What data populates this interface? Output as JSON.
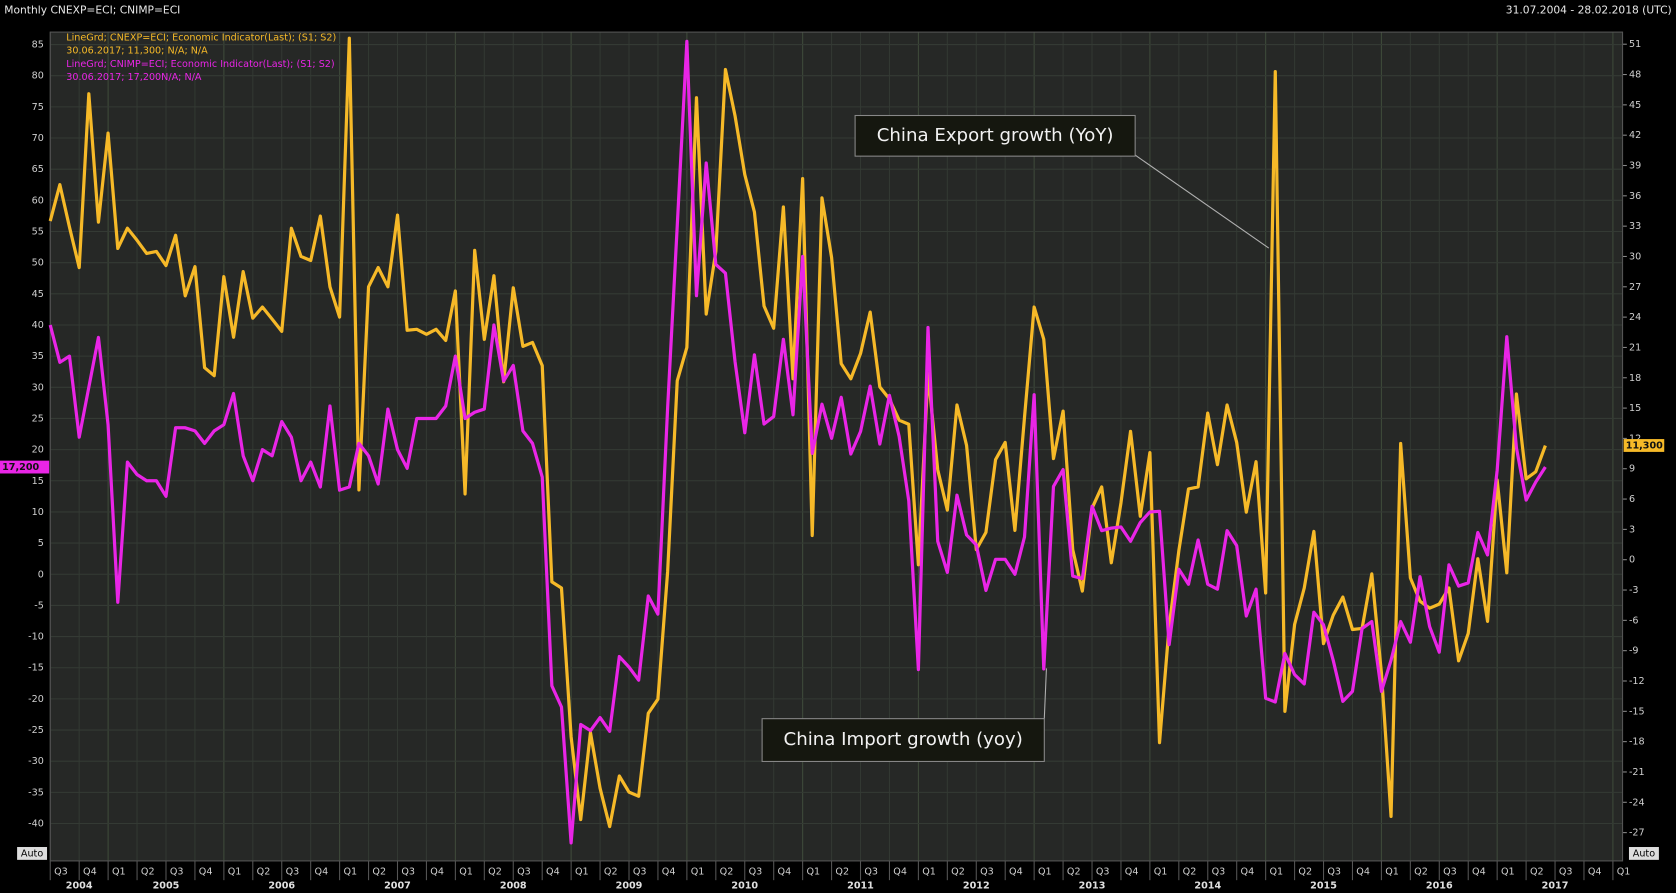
{
  "chart_data": {
    "type": "line",
    "title": "Monthly CNEXP=ECI; CNIMP=ECI",
    "date_range": "31.07.2004 - 28.02.2018 (UTC)",
    "annotations": [
      "China Export growth (YoY)",
      "China Import growth (yoy)"
    ],
    "scale_buttons": [
      "Auto",
      "Auto"
    ],
    "grid": true,
    "xlim": [
      "2004-07",
      "2018-02"
    ],
    "ylim": [
      -46,
      87
    ],
    "y2lim": [
      -29.8,
      52.2
    ],
    "yticks": [
      -40,
      -35,
      -30,
      -25,
      -20,
      -15,
      -10,
      -5,
      0,
      5,
      10,
      15,
      20,
      25,
      30,
      35,
      40,
      45,
      50,
      55,
      60,
      65,
      70,
      75,
      80,
      85
    ],
    "y2ticks": [
      -27,
      -24,
      -21,
      -18,
      -15,
      -12,
      -9,
      -6,
      -3,
      0,
      3,
      6,
      9,
      12,
      15,
      18,
      21,
      24,
      27,
      30,
      33,
      36,
      39,
      42,
      45,
      48,
      51
    ],
    "xticks": [
      {
        "value": "2004-07",
        "label": "Q3"
      },
      {
        "value": "2004-10",
        "label": "Q4"
      },
      {
        "value": "2005-01",
        "label": "Q1"
      },
      {
        "value": "2005-04",
        "label": "Q2"
      },
      {
        "value": "2005-07",
        "label": "Q3"
      },
      {
        "value": "2005-10",
        "label": "Q4"
      },
      {
        "value": "2006-01",
        "label": "Q1"
      },
      {
        "value": "2006-04",
        "label": "Q2"
      },
      {
        "value": "2006-07",
        "label": "Q3"
      },
      {
        "value": "2006-10",
        "label": "Q4"
      },
      {
        "value": "2007-01",
        "label": "Q1"
      },
      {
        "value": "2007-04",
        "label": "Q2"
      },
      {
        "value": "2007-07",
        "label": "Q3"
      },
      {
        "value": "2007-10",
        "label": "Q4"
      },
      {
        "value": "2008-01",
        "label": "Q1"
      },
      {
        "value": "2008-04",
        "label": "Q2"
      },
      {
        "value": "2008-07",
        "label": "Q3"
      },
      {
        "value": "2008-10",
        "label": "Q4"
      },
      {
        "value": "2009-01",
        "label": "Q1"
      },
      {
        "value": "2009-04",
        "label": "Q2"
      },
      {
        "value": "2009-07",
        "label": "Q3"
      },
      {
        "value": "2009-10",
        "label": "Q4"
      },
      {
        "value": "2010-01",
        "label": "Q1"
      },
      {
        "value": "2010-04",
        "label": "Q2"
      },
      {
        "value": "2010-07",
        "label": "Q3"
      },
      {
        "value": "2010-10",
        "label": "Q4"
      },
      {
        "value": "2011-01",
        "label": "Q1"
      },
      {
        "value": "2011-04",
        "label": "Q2"
      },
      {
        "value": "2011-07",
        "label": "Q3"
      },
      {
        "value": "2011-10",
        "label": "Q4"
      },
      {
        "value": "2012-01",
        "label": "Q1"
      },
      {
        "value": "2012-04",
        "label": "Q2"
      },
      {
        "value": "2012-07",
        "label": "Q3"
      },
      {
        "value": "2012-10",
        "label": "Q4"
      },
      {
        "value": "2013-01",
        "label": "Q1"
      },
      {
        "value": "2013-04",
        "label": "Q2"
      },
      {
        "value": "2013-07",
        "label": "Q3"
      },
      {
        "value": "2013-10",
        "label": "Q4"
      },
      {
        "value": "2014-01",
        "label": "Q1"
      },
      {
        "value": "2014-04",
        "label": "Q2"
      },
      {
        "value": "2014-07",
        "label": "Q3"
      },
      {
        "value": "2014-10",
        "label": "Q4"
      },
      {
        "value": "2015-01",
        "label": "Q1"
      },
      {
        "value": "2015-04",
        "label": "Q2"
      },
      {
        "value": "2015-07",
        "label": "Q3"
      },
      {
        "value": "2015-10",
        "label": "Q4"
      },
      {
        "value": "2016-01",
        "label": "Q1"
      },
      {
        "value": "2016-04",
        "label": "Q2"
      },
      {
        "value": "2016-07",
        "label": "Q3"
      },
      {
        "value": "2016-10",
        "label": "Q4"
      },
      {
        "value": "2017-01",
        "label": "Q1"
      },
      {
        "value": "2017-04",
        "label": "Q2"
      },
      {
        "value": "2017-07",
        "label": "Q3"
      },
      {
        "value": "2017-10",
        "label": "Q4"
      },
      {
        "value": "2018-01",
        "label": "Q1"
      }
    ],
    "years": [
      "2004",
      "2005",
      "2006",
      "2007",
      "2008",
      "2009",
      "2010",
      "2011",
      "2012",
      "2013",
      "2014",
      "2015",
      "2016",
      "2017"
    ],
    "x": [
      "2004-07",
      "2004-08",
      "2004-09",
      "2004-10",
      "2004-11",
      "2004-12",
      "2005-01",
      "2005-02",
      "2005-03",
      "2005-04",
      "2005-05",
      "2005-06",
      "2005-07",
      "2005-08",
      "2005-09",
      "2005-10",
      "2005-11",
      "2005-12",
      "2006-01",
      "2006-02",
      "2006-03",
      "2006-04",
      "2006-05",
      "2006-06",
      "2006-07",
      "2006-08",
      "2006-09",
      "2006-10",
      "2006-11",
      "2006-12",
      "2007-01",
      "2007-02",
      "2007-03",
      "2007-04",
      "2007-05",
      "2007-06",
      "2007-07",
      "2007-08",
      "2007-09",
      "2007-10",
      "2007-11",
      "2007-12",
      "2008-01",
      "2008-02",
      "2008-03",
      "2008-04",
      "2008-05",
      "2008-06",
      "2008-07",
      "2008-08",
      "2008-09",
      "2008-10",
      "2008-11",
      "2008-12",
      "2009-01",
      "2009-02",
      "2009-03",
      "2009-04",
      "2009-05",
      "2009-06",
      "2009-07",
      "2009-08",
      "2009-09",
      "2009-10",
      "2009-11",
      "2009-12",
      "2010-01",
      "2010-02",
      "2010-03",
      "2010-04",
      "2010-05",
      "2010-06",
      "2010-07",
      "2010-08",
      "2010-09",
      "2010-10",
      "2010-11",
      "2010-12",
      "2011-01",
      "2011-02",
      "2011-03",
      "2011-04",
      "2011-05",
      "2011-06",
      "2011-07",
      "2011-08",
      "2011-09",
      "2011-10",
      "2011-11",
      "2011-12",
      "2012-01",
      "2012-02",
      "2012-03",
      "2012-04",
      "2012-05",
      "2012-06",
      "2012-07",
      "2012-08",
      "2012-09",
      "2012-10",
      "2012-11",
      "2012-12",
      "2013-01",
      "2013-02",
      "2013-03",
      "2013-04",
      "2013-05",
      "2013-06",
      "2013-07",
      "2013-08",
      "2013-09",
      "2013-10",
      "2013-11",
      "2013-12",
      "2014-01",
      "2014-02",
      "2014-03",
      "2014-04",
      "2014-05",
      "2014-06",
      "2014-07",
      "2014-08",
      "2014-09",
      "2014-10",
      "2014-11",
      "2014-12",
      "2015-01",
      "2015-02",
      "2015-03",
      "2015-04",
      "2015-05",
      "2015-06",
      "2015-07",
      "2015-08",
      "2015-09",
      "2015-10",
      "2015-11",
      "2015-12",
      "2016-01",
      "2016-02",
      "2016-03",
      "2016-04",
      "2016-05",
      "2016-06",
      "2016-07",
      "2016-08",
      "2016-09",
      "2016-10",
      "2016-11",
      "2016-12",
      "2017-01",
      "2017-02",
      "2017-03",
      "2017-04",
      "2017-05",
      "2017-06"
    ],
    "series": [
      {
        "name": "LineGrd; CNEXP=ECI; Economic Indicator(Last); (S1; S2)",
        "detail": "30.06.2017; 11,300; N/A; N/A",
        "last_label": "11,300",
        "color": "#f6b928",
        "axis": "y2",
        "values": [
          33.5,
          37.1,
          32.9,
          28.9,
          46.1,
          33.4,
          42.2,
          30.8,
          32.8,
          31.6,
          30.3,
          30.5,
          29.1,
          32.1,
          26.1,
          29.0,
          19.0,
          18.2,
          28.0,
          22.0,
          28.5,
          23.9,
          25.0,
          23.8,
          22.6,
          32.8,
          30.0,
          29.6,
          34.0,
          27.0,
          24.0,
          51.6,
          6.9,
          27.0,
          28.9,
          27.0,
          34.1,
          22.7,
          22.8,
          22.3,
          22.8,
          21.7,
          26.6,
          6.5,
          30.6,
          21.8,
          28.1,
          17.6,
          26.9,
          21.1,
          21.5,
          19.2,
          -2.2,
          -2.8,
          -17.5,
          -25.7,
          -17.1,
          -22.6,
          -26.4,
          -21.4,
          -23.0,
          -23.4,
          -15.2,
          -13.8,
          -1.2,
          17.7,
          21.0,
          45.7,
          24.3,
          30.5,
          48.5,
          43.9,
          38.1,
          34.4,
          25.1,
          22.9,
          34.9,
          17.9,
          37.7,
          2.4,
          35.8,
          29.9,
          19.4,
          17.9,
          20.4,
          24.5,
          17.1,
          15.9,
          13.8,
          13.4,
          -0.5,
          18.4,
          8.9,
          4.9,
          15.3,
          11.3,
          1.0,
          2.7,
          9.9,
          11.6,
          2.9,
          14.1,
          25.0,
          21.8,
          10.0,
          14.7,
          1.0,
          -3.1,
          5.1,
          7.2,
          -0.3,
          5.6,
          12.7,
          4.3,
          10.6,
          -18.1,
          -6.6,
          0.9,
          7.0,
          7.2,
          14.5,
          9.4,
          15.3,
          11.6,
          4.7,
          9.7,
          -3.3,
          48.3,
          -15.0,
          -6.4,
          -2.8,
          2.8,
          -8.3,
          -5.5,
          -3.7,
          -6.9,
          -6.8,
          -1.4,
          -11.2,
          -25.4,
          11.5,
          -1.8,
          -4.1,
          -4.8,
          -4.4,
          -2.8,
          -10.0,
          -7.3,
          0.1,
          -6.1,
          7.9,
          -1.3,
          16.4,
          8.0,
          8.7,
          11.3
        ]
      },
      {
        "name": "LineGrd; CNIMP=ECI; Economic Indicator(Last); (S1; S2)",
        "detail": "30.06.2017; 17,200N/A; N/A",
        "last_label": "17,200",
        "color": "#e925e6",
        "values": [
          40.0,
          34.0,
          35.0,
          22.0,
          30.0,
          38.0,
          24.0,
          -4.5,
          18.0,
          16.0,
          15.0,
          15.0,
          12.5,
          23.5,
          23.5,
          23.0,
          21.0,
          23.0,
          24.0,
          29.0,
          19.0,
          15.0,
          20.0,
          19.0,
          24.5,
          22.0,
          15.0,
          18.0,
          14.0,
          27.0,
          13.5,
          14.0,
          21.0,
          19.0,
          14.5,
          26.5,
          20.0,
          17.0,
          25.0,
          25.0,
          25.0,
          27.0,
          35.0,
          25.0,
          26.0,
          26.5,
          40.0,
          31.0,
          33.5,
          23.0,
          21.0,
          15.6,
          -17.9,
          -21.3,
          -43.1,
          -24.1,
          -25.1,
          -23.0,
          -25.2,
          -13.2,
          -14.9,
          -17.0,
          -3.5,
          -6.4,
          26.7,
          55.9,
          85.5,
          44.7,
          66.0,
          49.7,
          48.3,
          34.1,
          22.7,
          35.2,
          24.1,
          25.3,
          37.7,
          25.6,
          51.0,
          19.4,
          27.3,
          21.8,
          28.4,
          19.3,
          22.9,
          30.2,
          20.9,
          28.7,
          22.1,
          11.8,
          -15.3,
          39.6,
          5.3,
          0.3,
          12.7,
          6.3,
          4.7,
          -2.6,
          2.4,
          2.4,
          0.0,
          6.0,
          28.8,
          -15.2,
          14.1,
          16.8,
          -0.3,
          -0.7,
          10.9,
          7.0,
          7.4,
          7.6,
          5.3,
          8.3,
          10.0,
          10.1,
          -11.3,
          0.8,
          -1.6,
          5.5,
          -1.6,
          -2.4,
          7.0,
          4.6,
          -6.7,
          -2.4,
          -19.9,
          -20.5,
          -12.7,
          -16.1,
          -17.6,
          -6.1,
          -8.1,
          -13.8,
          -20.4,
          -18.8,
          -8.7,
          -7.6,
          -18.8,
          -13.8,
          -7.6,
          -10.9,
          -0.4,
          -8.4,
          -12.5,
          1.5,
          -1.9,
          -1.4,
          6.7,
          3.1,
          16.7,
          38.1,
          20.3,
          11.9,
          14.8,
          17.2
        ]
      }
    ]
  }
}
